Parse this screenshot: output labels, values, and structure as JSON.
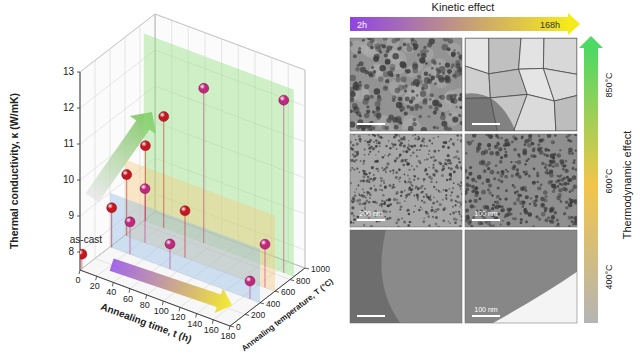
{
  "chart_data": {
    "type": "scatter3d",
    "y_label": "Thermal conductivity, κ (W/mK)",
    "x_label": "Annealing time, t (h)",
    "depth_label": "Annealing temperature, T (°C)",
    "annotations": [
      {
        "text": "as-cast",
        "index": 0
      }
    ],
    "x": [
      0,
      2,
      24,
      72,
      168,
      2,
      24,
      72,
      168,
      2,
      24,
      72,
      168
    ],
    "depth": [
      25,
      400,
      400,
      400,
      400,
      600,
      600,
      600,
      600,
      850,
      850,
      850,
      850
    ],
    "values": [
      7.9,
      8.6,
      8.4,
      8.2,
      8.0,
      9.2,
      9.0,
      8.8,
      8.7,
      9.6,
      10.6,
      11.8,
      12.3
    ],
    "colors": [
      "#c8161e",
      "#c8161e",
      "#c2277f",
      "#c2277f",
      "#c2277f",
      "#c8161e",
      "#c2277f",
      "#c8161e",
      "#c2277f",
      "#c8161e",
      "#c8161e",
      "#c2277f",
      "#c2277f"
    ],
    "xlim": [
      0,
      180
    ],
    "xticks": [
      0,
      20,
      40,
      60,
      80,
      100,
      120,
      140,
      160,
      180
    ],
    "depthlim": [
      0,
      1000
    ],
    "depthticks": [
      0,
      200,
      400,
      600,
      800,
      1000
    ],
    "ylim": [
      7.5,
      13
    ],
    "yticks": [
      8,
      9,
      10,
      11,
      12,
      13
    ],
    "grid": true,
    "marker": "sphere"
  },
  "tem_panel": {
    "title": "Kinetic effect",
    "columns": [
      "2h",
      "168h"
    ],
    "side_title": "Thermodynamic effect",
    "rows": [
      "850°C",
      "600°C",
      "400°C"
    ],
    "scale_bars": [
      [
        null,
        null
      ],
      [
        "200 nm",
        "100 nm"
      ],
      [
        null,
        "100 nm"
      ]
    ]
  }
}
